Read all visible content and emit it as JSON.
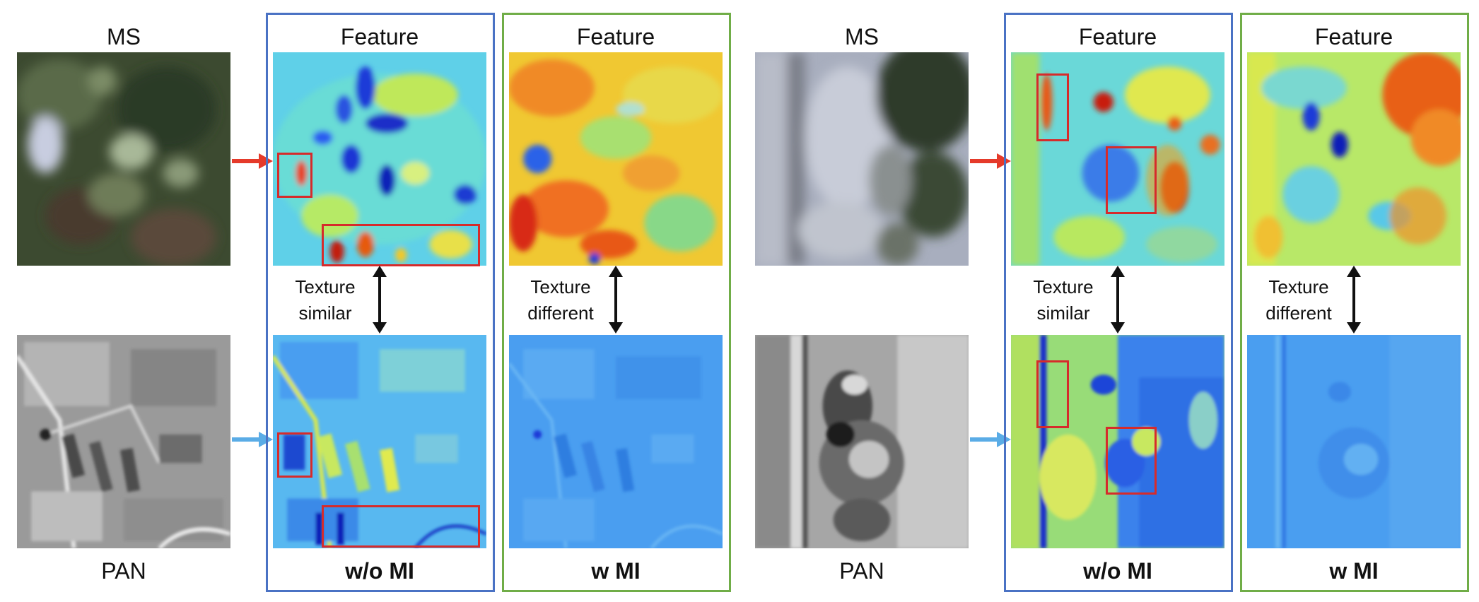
{
  "labels": {
    "ms": "MS",
    "pan": "PAN",
    "feature": "Feature",
    "wo_mi": "w/o MI",
    "w_mi": "w MI",
    "texture": "Texture",
    "similar": "similar",
    "different": "different"
  },
  "colors": {
    "blue_box": "#4a72c4",
    "green_box": "#70ad47",
    "highlight": "#d62b2b",
    "arrow_red": "#e53a2a",
    "arrow_blue": "#5aace6"
  }
}
